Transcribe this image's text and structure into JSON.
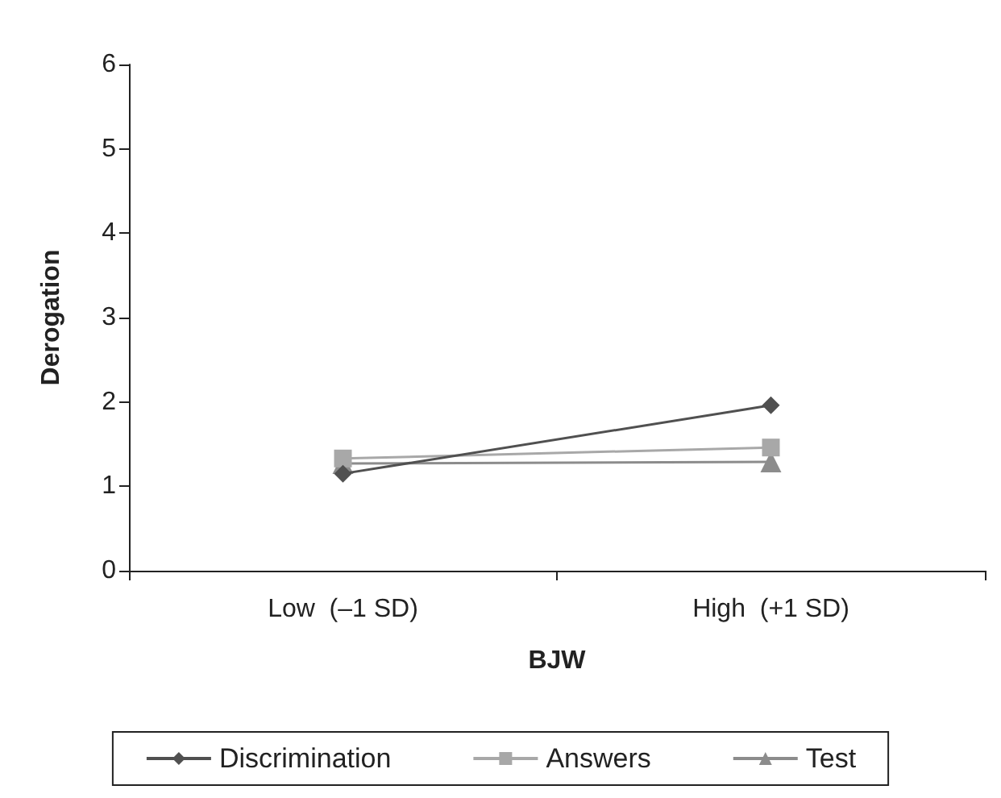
{
  "chart_data": {
    "type": "line",
    "xlabel": "BJW",
    "ylabel": "Derogation",
    "categories": [
      "Low  (–1 SD)",
      "High  (+1 SD)"
    ],
    "series": [
      {
        "name": "Discrimination",
        "color": "#505050",
        "marker": "diamond",
        "values": [
          1.15,
          1.96
        ]
      },
      {
        "name": "Answers",
        "color": "#a8a8a8",
        "marker": "square",
        "values": [
          1.33,
          1.46
        ]
      },
      {
        "name": "Test",
        "color": "#8c8c8c",
        "marker": "triangle",
        "values": [
          1.27,
          1.29
        ]
      }
    ],
    "ylim": [
      0,
      6
    ],
    "yticks": [
      0,
      1,
      2,
      3,
      4,
      5,
      6
    ],
    "grid": false,
    "legend": "bottom",
    "line_style": "solid"
  }
}
